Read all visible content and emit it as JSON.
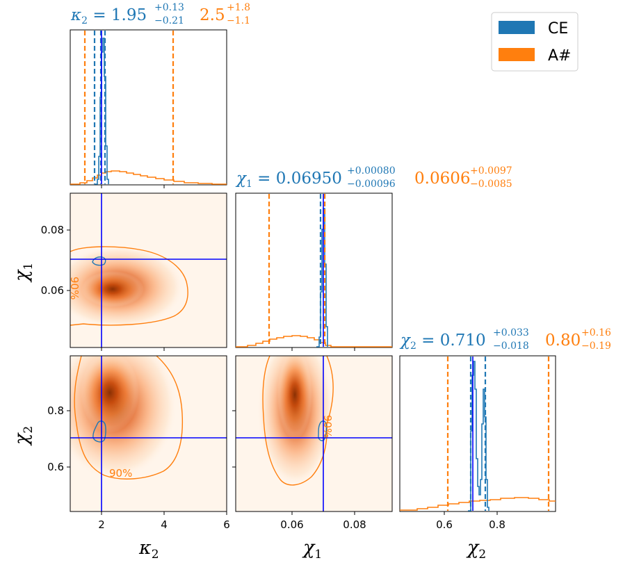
{
  "colors": {
    "ce": "#1f77b4",
    "asharp": "#ff7f0e",
    "truth": "#0000ff"
  },
  "legend": {
    "ce": "CE",
    "asharp": "A#"
  },
  "titles": {
    "kappa2": {
      "sym": "κ",
      "sub": "2",
      "eq": " = ",
      "ce_val": "1.95",
      "ce_up": "+0.13",
      "ce_lo": "−0.21",
      "a_val": "2.5",
      "a_up": "+1.8",
      "a_lo": "−1.1"
    },
    "chi1": {
      "sym": "χ",
      "sub": "1",
      "eq": " = ",
      "ce_val": "0.06950",
      "ce_up": "+0.00080",
      "ce_lo": "−0.00096",
      "a_val": "0.0606",
      "a_up": "+0.0097",
      "a_lo": "−0.0085"
    },
    "chi2": {
      "sym": "χ",
      "sub": "2",
      "eq": " = ",
      "ce_val": "0.710",
      "ce_up": "+0.033",
      "ce_lo": "−0.018",
      "a_val": "0.80",
      "a_up": "+0.16",
      "a_lo": "−0.19"
    }
  },
  "axes": {
    "kappa2": {
      "label": "κ",
      "label_sub": "2",
      "ticks": [
        "2",
        "4",
        "6"
      ]
    },
    "chi1": {
      "label": "χ",
      "label_sub": "1",
      "ticks": [
        "0.06",
        "0.08"
      ]
    },
    "chi2": {
      "label": "χ",
      "label_sub": "2",
      "ticks": [
        "0.6",
        "0.8"
      ]
    }
  },
  "contour_label": "90%",
  "chart_data": {
    "type": "heatmap",
    "subtype": "corner-plot",
    "parameters": [
      "κ2",
      "χ1",
      "χ2"
    ],
    "ranges": {
      "kappa2": [
        1,
        6
      ],
      "chi1": [
        0.04,
        0.092
      ],
      "chi2": [
        0.44,
        0.99
      ]
    },
    "truth": {
      "kappa2": 2.0,
      "chi1": 0.07,
      "chi2": 0.7
    },
    "series": [
      {
        "name": "CE",
        "summaries": {
          "kappa2": {
            "median": 1.95,
            "plus": 0.13,
            "minus": 0.21
          },
          "chi1": {
            "median": 0.0695,
            "plus": 0.0008,
            "minus": 0.00096
          },
          "chi2": {
            "median": 0.71,
            "plus": 0.033,
            "minus": 0.018
          }
        },
        "contour_level": "90%"
      },
      {
        "name": "A#",
        "summaries": {
          "kappa2": {
            "median": 2.5,
            "plus": 1.8,
            "minus": 1.1
          },
          "chi1": {
            "median": 0.0606,
            "plus": 0.0097,
            "minus": 0.0085
          },
          "chi2": {
            "median": 0.8,
            "plus": 0.16,
            "minus": 0.19
          }
        },
        "contour_level": "90%"
      }
    ],
    "legend_position": "top-right"
  }
}
